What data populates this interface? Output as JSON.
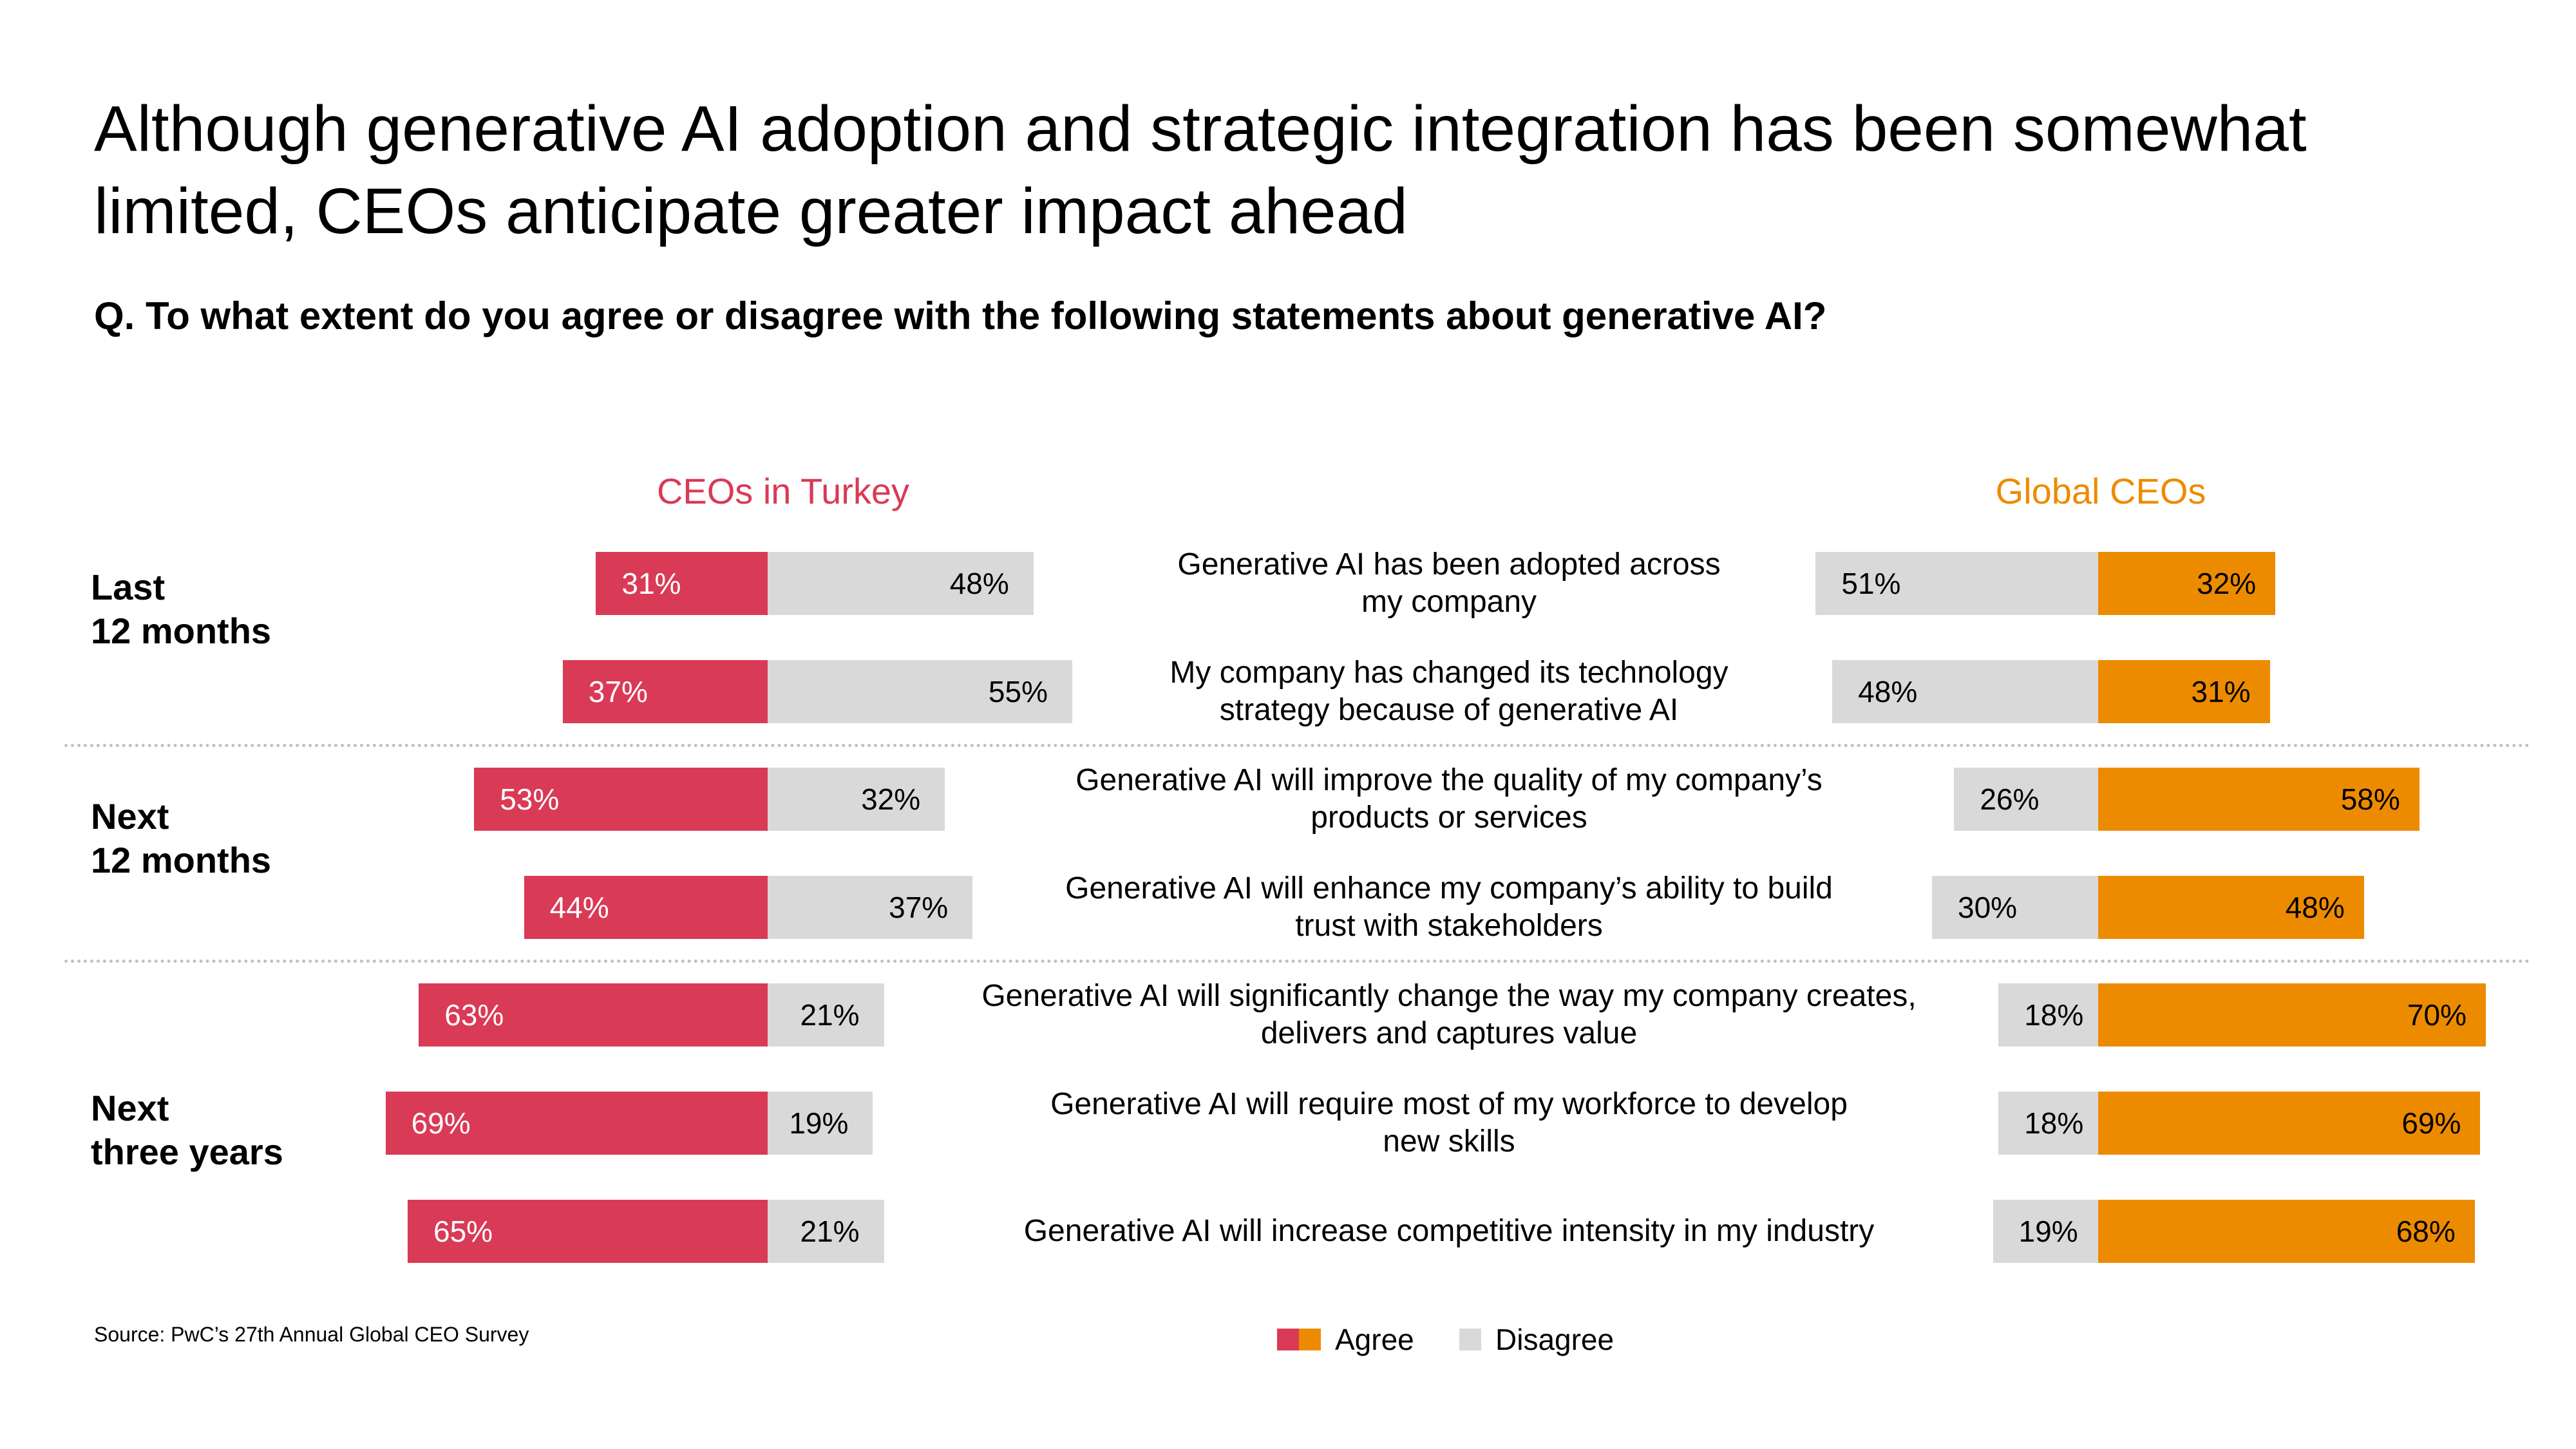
{
  "title_lines": [
    "Although generative AI adoption and strategic integration has been somewhat",
    "limited, CEOs anticipate greater impact ahead"
  ],
  "question": "Q. To what extent do you agree or disagree with the following statements about generative AI?",
  "source": "Source: PwC’s 27th Annual Global CEO Survey",
  "colors": {
    "turkey_agree": "#D93A56",
    "global_agree": "#ED8B00",
    "disagree": "#D9D9D9",
    "turkey_header": "#D93A56",
    "global_header": "#ED8B00"
  },
  "chart_data": {
    "type": "bar",
    "orientation": "horizontal-diverging",
    "title": "Although generative AI adoption and strategic integration has been somewhat limited, CEOs anticipate greater impact ahead",
    "panels": [
      "CEOs in Turkey",
      "Global CEOs"
    ],
    "groups": [
      {
        "label_lines": [
          "Last",
          "12 months"
        ]
      },
      {
        "label_lines": [
          "Next",
          "12 months"
        ]
      },
      {
        "label_lines": [
          "Next",
          "three years"
        ]
      }
    ],
    "statements": [
      {
        "group": 0,
        "lines": [
          "Generative AI has been adopted across",
          "my company"
        ],
        "turkey": {
          "agree": 31,
          "disagree": 48,
          "agree_label": "31%",
          "disagree_label": "48%"
        },
        "global": {
          "agree": 32,
          "disagree": 51,
          "agree_label": "32%",
          "disagree_label": "51%"
        }
      },
      {
        "group": 0,
        "lines": [
          "My company has changed its technology",
          "strategy because of generative AI"
        ],
        "turkey": {
          "agree": 37,
          "disagree": 55,
          "agree_label": "37%",
          "disagree_label": "55%"
        },
        "global": {
          "agree": 31,
          "disagree": 48,
          "agree_label": "31%",
          "disagree_label": "48%"
        }
      },
      {
        "group": 1,
        "lines": [
          "Generative AI will improve the quality of my company’s",
          "products or services"
        ],
        "turkey": {
          "agree": 53,
          "disagree": 32,
          "agree_label": "53%",
          "disagree_label": "32%"
        },
        "global": {
          "agree": 58,
          "disagree": 26,
          "agree_label": "58%",
          "disagree_label": "26%"
        }
      },
      {
        "group": 1,
        "lines": [
          "Generative AI will enhance my company’s ability to build",
          "trust with stakeholders"
        ],
        "turkey": {
          "agree": 44,
          "disagree": 37,
          "agree_label": "44%",
          "disagree_label": "37%"
        },
        "global": {
          "agree": 48,
          "disagree": 30,
          "agree_label": "48%",
          "disagree_label": "30%"
        }
      },
      {
        "group": 2,
        "lines": [
          "Generative AI will significantly change the way my company creates,",
          "delivers and captures value"
        ],
        "turkey": {
          "agree": 63,
          "disagree": 21,
          "agree_label": "63%",
          "disagree_label": "21%"
        },
        "global": {
          "agree": 70,
          "disagree": 18,
          "agree_label": "70%",
          "disagree_label": "18%"
        }
      },
      {
        "group": 2,
        "lines": [
          "Generative AI will require most of my workforce to develop",
          "new skills"
        ],
        "turkey": {
          "agree": 69,
          "disagree": 19,
          "agree_label": "69%",
          "disagree_label": "19%"
        },
        "global": {
          "agree": 69,
          "disagree": 18,
          "agree_label": "69%",
          "disagree_label": "18%"
        }
      },
      {
        "group": 2,
        "lines": [
          "Generative AI will increase competitive intensity in my industry"
        ],
        "turkey": {
          "agree": 65,
          "disagree": 21,
          "agree_label": "65%",
          "disagree_label": "21%"
        },
        "global": {
          "agree": 68,
          "disagree": 19,
          "agree_label": "68%",
          "disagree_label": "19%"
        }
      }
    ],
    "legend": {
      "position": "bottom-center",
      "items": [
        {
          "label": "Agree",
          "colors": [
            "#D93A56",
            "#ED8B00"
          ]
        },
        {
          "label": "Disagree",
          "colors": [
            "#D9D9D9"
          ]
        }
      ]
    }
  }
}
